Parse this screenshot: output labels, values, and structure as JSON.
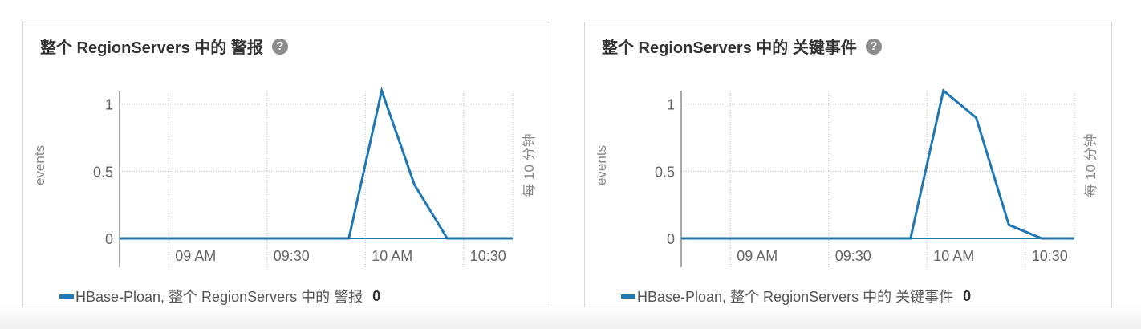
{
  "panels": [
    {
      "title": "整个 RegionServers 中的 警报",
      "help": "?",
      "legend_label": "HBase-Ploan, 整个 RegionServers 中的 警报",
      "legend_value": "0",
      "series_color": "#1f77b4"
    },
    {
      "title": "整个 RegionServers 中的 关键事件",
      "help": "?",
      "legend_label": "HBase-Ploan, 整个 RegionServers 中的 关键事件",
      "legend_value": "0",
      "series_color": "#1f77b4"
    }
  ],
  "chart_data": [
    {
      "type": "line",
      "ylabel": "events",
      "y2label": "每 10 分钟",
      "ylim": [
        0,
        1.1
      ],
      "yticks": [
        0,
        0.5,
        1
      ],
      "ytick_labels": [
        "0",
        "0.5",
        "1"
      ],
      "xlim": [
        "08:45",
        "10:45"
      ],
      "xticks": [
        "09:00",
        "09:30",
        "10:00",
        "10:30"
      ],
      "xtick_labels": [
        "09 AM",
        "09:30",
        "10 AM",
        "10:30"
      ],
      "grid": true,
      "series": [
        {
          "name": "HBase-Ploan, 整个 RegionServers 中的 警报",
          "x": [
            "08:45",
            "09:55",
            "10:05",
            "10:15",
            "10:25",
            "10:45"
          ],
          "y": [
            0,
            0,
            1.1,
            0.4,
            0,
            0
          ]
        }
      ]
    },
    {
      "type": "line",
      "ylabel": "events",
      "y2label": "每 10 分钟",
      "ylim": [
        0,
        1.1
      ],
      "yticks": [
        0,
        0.5,
        1
      ],
      "ytick_labels": [
        "0",
        "0.5",
        "1"
      ],
      "xlim": [
        "08:45",
        "10:45"
      ],
      "xticks": [
        "09:00",
        "09:30",
        "10:00",
        "10:30"
      ],
      "xtick_labels": [
        "09 AM",
        "09:30",
        "10 AM",
        "10:30"
      ],
      "grid": true,
      "series": [
        {
          "name": "HBase-Ploan, 整个 RegionServers 中的 关键事件",
          "x": [
            "08:45",
            "09:55",
            "10:05",
            "10:15",
            "10:25",
            "10:35",
            "10:45"
          ],
          "y": [
            0,
            0,
            1.1,
            0.9,
            0.1,
            0,
            0
          ]
        }
      ]
    }
  ]
}
